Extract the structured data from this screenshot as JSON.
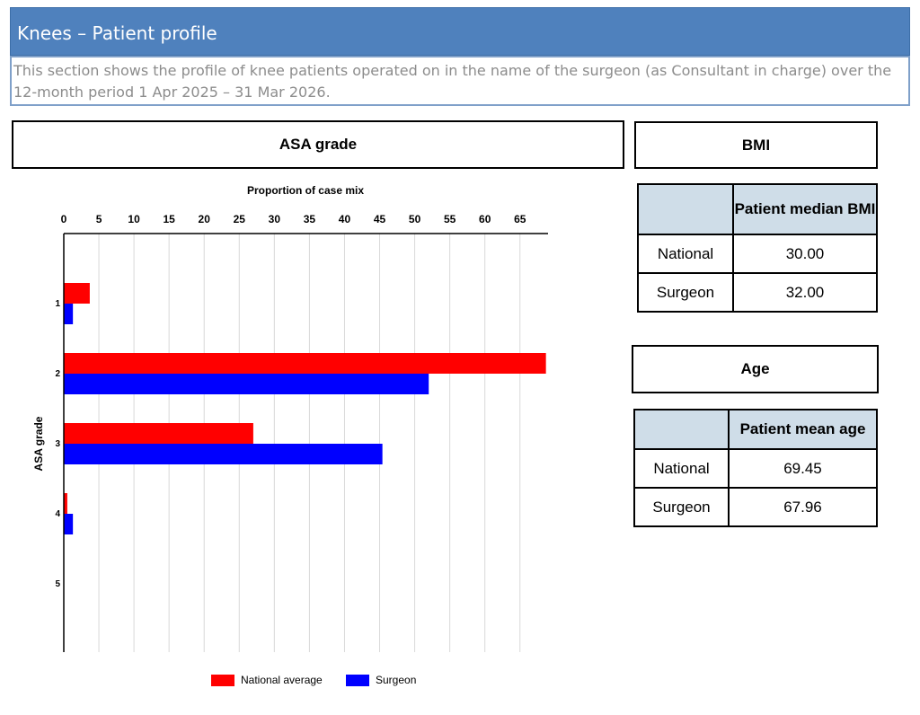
{
  "header": {
    "title": "Knees – Patient profile",
    "description": "This section shows the profile of knee patients operated on in the name of the surgeon (as Consultant in charge) over the 12-month period 1 Apr 2025 – 31 Mar 2026."
  },
  "asa_panel": {
    "title": "ASA grade"
  },
  "bmi_panel": {
    "title": "BMI",
    "column_header": "Patient median BMI",
    "rows": [
      {
        "label": "National",
        "value": "30.00"
      },
      {
        "label": "Surgeon",
        "value": "32.00"
      }
    ]
  },
  "age_panel": {
    "title": "Age",
    "column_header": "Patient mean age",
    "rows": [
      {
        "label": "National",
        "value": "69.45"
      },
      {
        "label": "Surgeon",
        "value": "67.96"
      }
    ]
  },
  "legend": [
    {
      "label": "National average",
      "color": "#ff0000"
    },
    {
      "label": "Surgeon",
      "color": "#0000ff"
    }
  ],
  "chart_data": {
    "type": "bar",
    "orientation": "horizontal",
    "xlabel": "Proportion of case mix",
    "ylabel": "ASA grade",
    "xlim": [
      0,
      69
    ],
    "xticks": [
      0,
      5,
      10,
      15,
      20,
      25,
      30,
      35,
      40,
      45,
      50,
      55,
      60,
      65
    ],
    "categories": [
      "1",
      "2",
      "3",
      "4",
      "5"
    ],
    "grid": true,
    "legend_position": "bottom",
    "series": [
      {
        "name": "National average",
        "color": "#ff0000",
        "values": [
          3.7,
          68.7,
          27.0,
          0.5,
          0
        ]
      },
      {
        "name": "Surgeon",
        "color": "#0000ff",
        "values": [
          1.3,
          52.0,
          45.4,
          1.3,
          0
        ]
      }
    ]
  }
}
